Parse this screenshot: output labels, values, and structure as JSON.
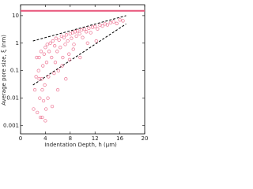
{
  "chart_data": {
    "type": "scatter",
    "xlabel": "Indentation Depth, h (μm)",
    "ylabel": "Average pore size, ξ (nm)",
    "xlim": [
      0,
      20
    ],
    "xticks": [
      0,
      4,
      8,
      12,
      16,
      20
    ],
    "ylim": [
      0.0005,
      25
    ],
    "yticks": [
      0.001,
      0.01,
      0.1,
      1,
      10
    ],
    "yscale": "log",
    "reference_line": {
      "value": 15,
      "color": "#e8557a"
    },
    "bounds": [
      {
        "x": [
          2,
          17
        ],
        "y": [
          1.2,
          10
        ]
      },
      {
        "x": [
          2,
          17
        ],
        "y": [
          0.03,
          5
        ]
      }
    ],
    "series": [
      {
        "color": "#e8557a",
        "x": [
          2.1,
          2.3,
          2.5,
          2.7,
          2.9,
          3.0,
          3.1,
          3.2,
          3.3,
          3.4,
          3.5,
          3.6,
          3.7,
          3.8,
          3.9,
          4.0,
          4.1,
          4.2,
          4.3,
          4.5,
          4.6,
          4.8,
          5.0,
          5.2,
          5.4,
          5.5,
          5.7,
          5.9,
          6.0,
          6.2,
          6.4,
          6.6,
          6.8,
          7.0,
          7.2,
          7.4,
          7.6,
          7.8,
          8.0,
          8.2,
          8.4,
          8.6,
          8.8,
          9.0,
          9.2,
          9.5,
          9.8,
          10.0,
          10.3,
          10.6,
          11.0,
          11.3,
          11.6,
          12.0,
          12.4,
          12.8,
          13.2,
          13.6,
          14.0,
          14.5,
          15.0,
          15.5,
          16.0,
          16.5,
          3.5,
          4.4,
          5.1,
          6.1,
          7.3,
          8.5,
          9.6,
          4.0,
          3.0,
          2.6,
          5.6,
          6.7,
          7.9,
          10.8,
          12.2
        ],
        "y": [
          0.004,
          0.02,
          0.06,
          0.003,
          0.1,
          0.3,
          0.01,
          0.002,
          0.5,
          0.05,
          0.002,
          0.15,
          0.008,
          0.4,
          0.03,
          0.7,
          0.004,
          0.2,
          0.9,
          0.06,
          0.5,
          1.0,
          0.3,
          1.2,
          0.08,
          0.8,
          1.5,
          0.5,
          0.02,
          1.3,
          0.7,
          1.8,
          0.3,
          1.6,
          0.9,
          2.0,
          1.2,
          0.4,
          2.2,
          1.5,
          2.4,
          0.9,
          2.6,
          1.8,
          2.8,
          2.2,
          3.0,
          1.6,
          3.2,
          2.6,
          3.5,
          2.4,
          3.8,
          4.0,
          3.3,
          4.5,
          4.2,
          5.0,
          4.6,
          5.5,
          6.0,
          5.2,
          7.0,
          6.5,
          0.02,
          0.01,
          0.005,
          0.1,
          0.05,
          0.6,
          0.3,
          0.0015,
          0.05,
          0.3,
          0.2,
          0.15,
          0.25,
          1.0,
          1.2
        ]
      }
    ]
  }
}
